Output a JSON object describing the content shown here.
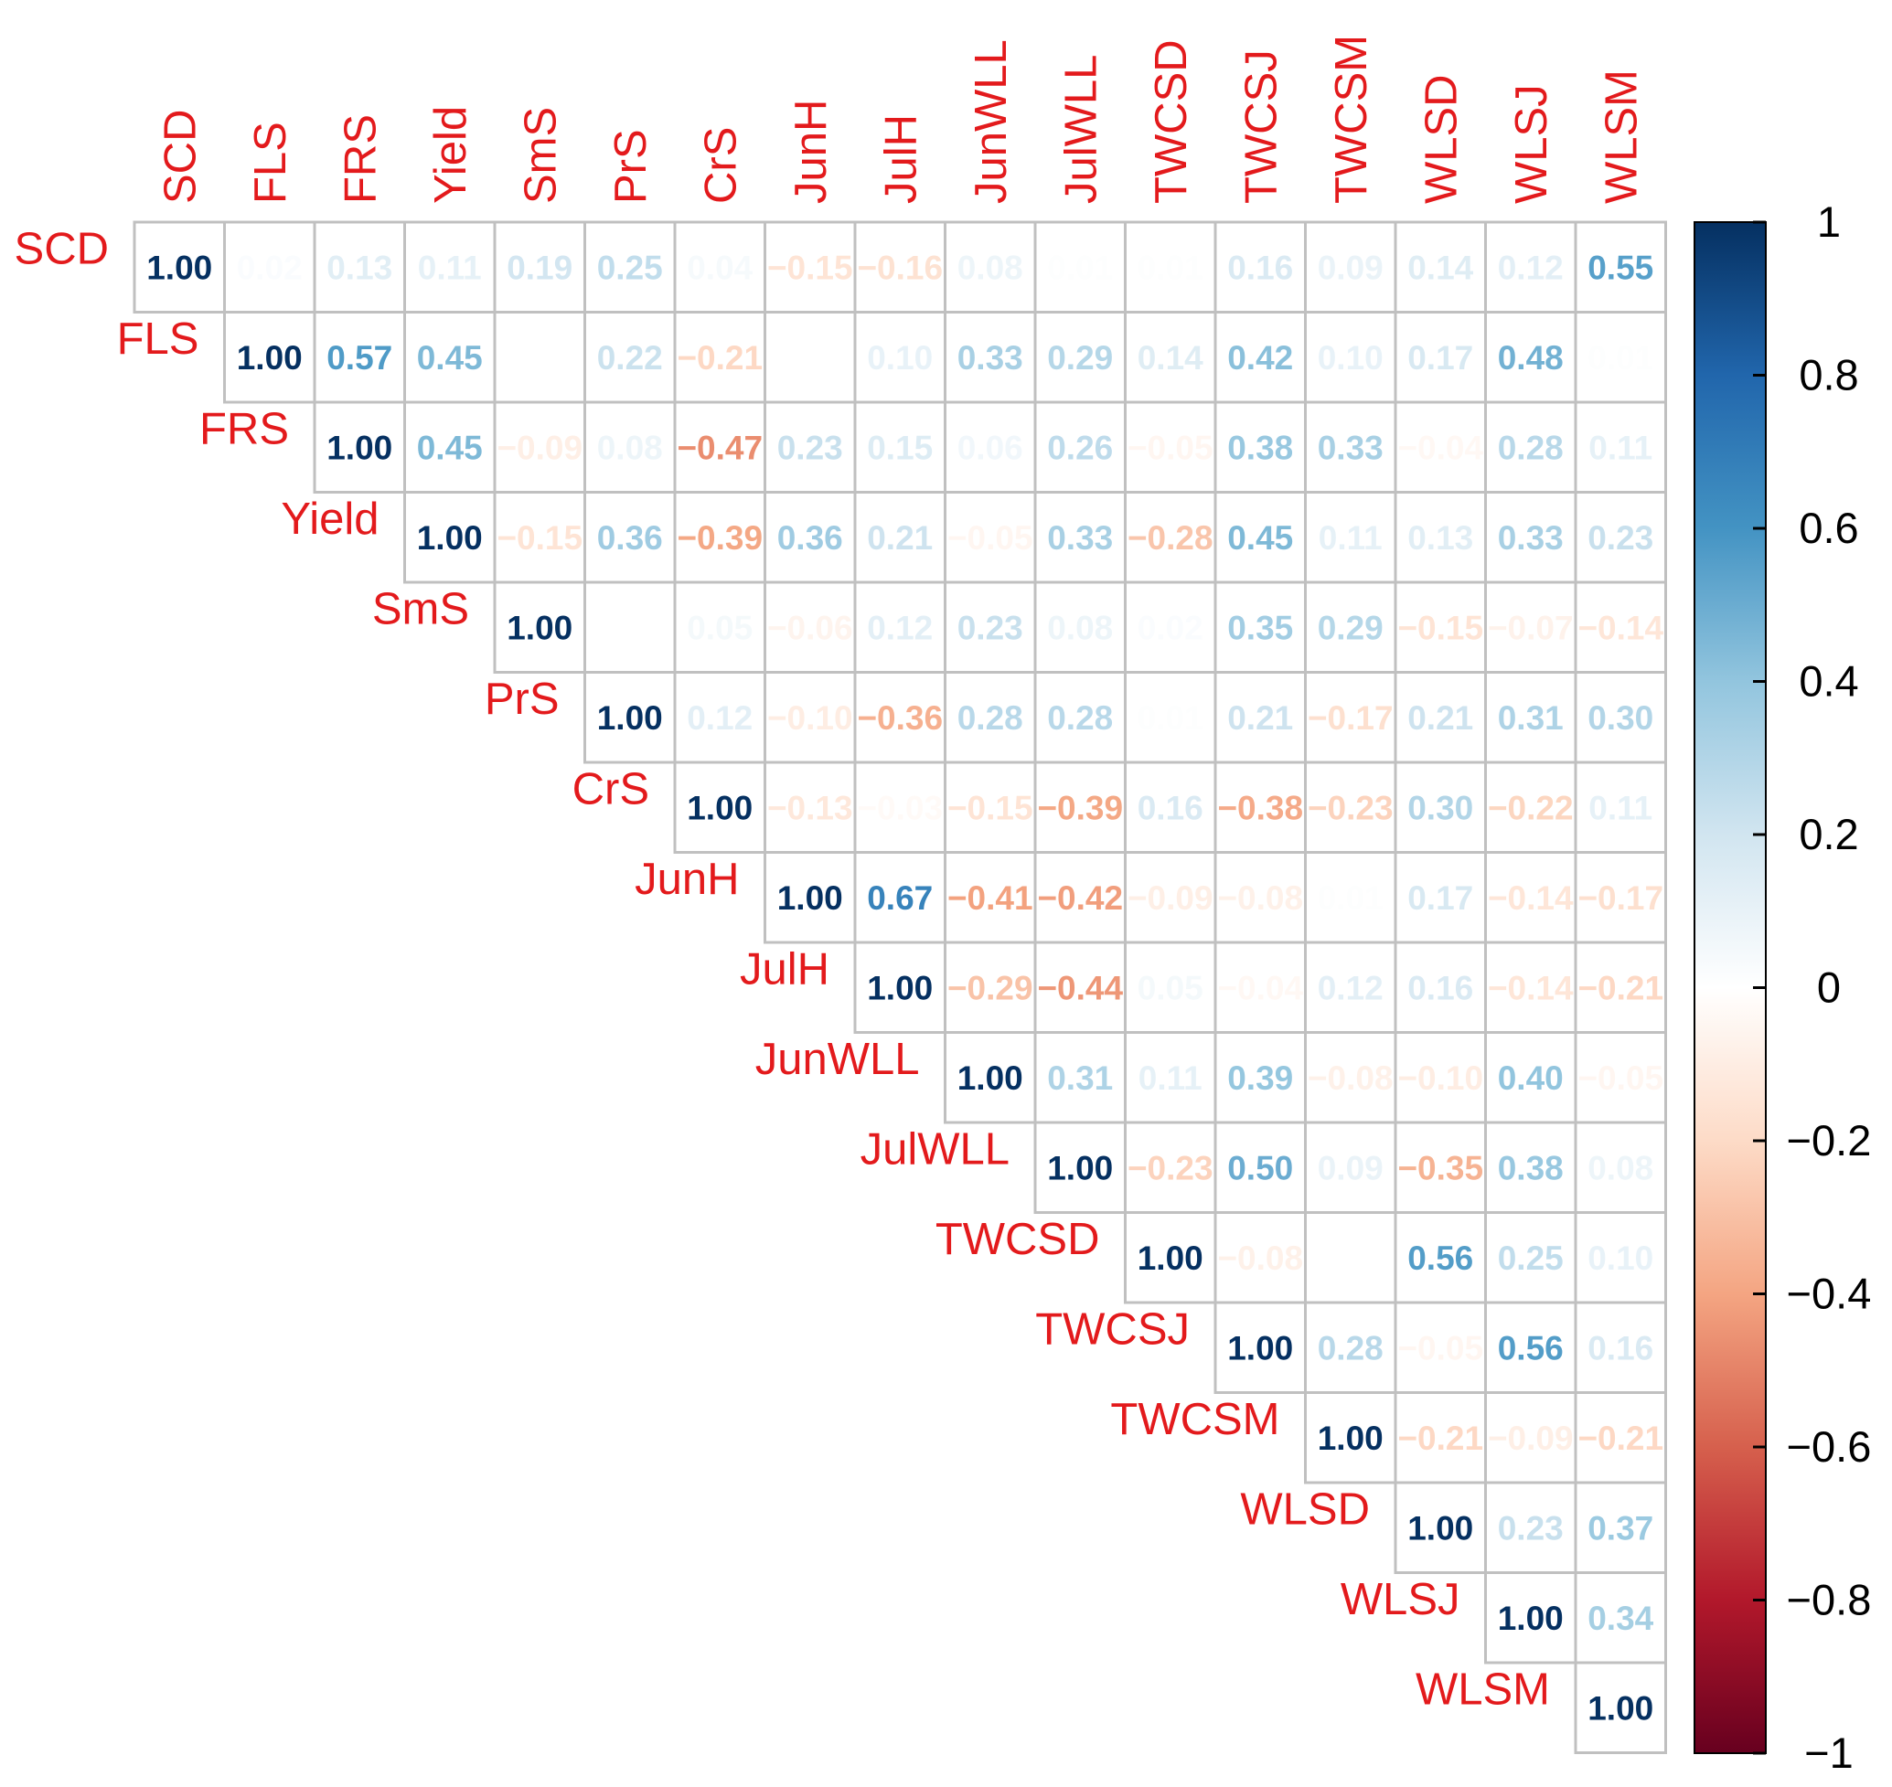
{
  "chart_data": {
    "type": "heatmap",
    "variables": [
      "SCD",
      "FLS",
      "FRS",
      "Yield",
      "SmS",
      "PrS",
      "CrS",
      "JunH",
      "JulH",
      "JunWLL",
      "JulWLL",
      "TWCSD",
      "TWCSJ",
      "TWCSM",
      "WLSD",
      "WLSJ",
      "WLSM"
    ],
    "upper_triangle_rows": [
      [
        "1.00",
        "0.02",
        "0.13",
        "0.11",
        "0.19",
        "0.25",
        "0.04",
        "-0.15",
        "-0.16",
        "0.08",
        "0.01",
        "0.01",
        "0.16",
        "0.09",
        "0.14",
        "0.12",
        "0.55"
      ],
      [
        "1.00",
        "0.57",
        "0.45",
        "-0.00",
        "0.22",
        "-0.21",
        "0.00",
        "0.10",
        "0.33",
        "0.29",
        "0.14",
        "0.42",
        "0.10",
        "0.17",
        "0.48",
        "0.01"
      ],
      [
        "1.00",
        "0.45",
        "-0.09",
        "0.08",
        "-0.47",
        "0.23",
        "0.15",
        "0.06",
        "0.26",
        "-0.05",
        "0.38",
        "0.33",
        "-0.04",
        "0.28",
        "0.11"
      ],
      [
        "1.00",
        "-0.15",
        "0.36",
        "-0.39",
        "0.36",
        "0.21",
        "-0.05",
        "0.33",
        "-0.28",
        "0.45",
        "0.11",
        "0.13",
        "0.33",
        "0.23"
      ],
      [
        "1.00",
        "-0.00",
        "0.05",
        "-0.06",
        "0.12",
        "0.23",
        "0.08",
        "0.02",
        "0.35",
        "0.29",
        "-0.15",
        "-0.07",
        "-0.14"
      ],
      [
        "1.00",
        "0.12",
        "-0.10",
        "-0.36",
        "0.28",
        "0.28",
        "0.01",
        "0.21",
        "-0.17",
        "0.21",
        "0.31",
        "0.30"
      ],
      [
        "1.00",
        "-0.13",
        "-0.03",
        "-0.15",
        "-0.39",
        "0.16",
        "-0.38",
        "-0.23",
        "0.30",
        "-0.22",
        "0.11"
      ],
      [
        "1.00",
        "0.67",
        "-0.41",
        "-0.42",
        "-0.09",
        "-0.08",
        "0.01",
        "0.17",
        "-0.14",
        "-0.17"
      ],
      [
        "1.00",
        "-0.29",
        "-0.44",
        "0.05",
        "-0.04",
        "0.12",
        "0.16",
        "-0.14",
        "-0.21"
      ],
      [
        "1.00",
        "0.31",
        "0.11",
        "0.39",
        "-0.08",
        "-0.10",
        "0.40",
        "-0.05"
      ],
      [
        "1.00",
        "-0.23",
        "0.50",
        "0.09",
        "-0.35",
        "0.38",
        "0.08"
      ],
      [
        "1.00",
        "-0.08",
        "0.00",
        "0.56",
        "0.25",
        "0.10"
      ],
      [
        "1.00",
        "0.28",
        "-0.05",
        "0.56",
        "0.16"
      ],
      [
        "1.00",
        "-0.21",
        "-0.09",
        "-0.21"
      ],
      [
        "1.00",
        "0.23",
        "0.37"
      ],
      [
        "1.00",
        "0.34"
      ],
      [
        "1.00"
      ]
    ],
    "colorbar": {
      "range": [
        -1,
        1
      ],
      "tick_labels": [
        "1",
        "0.8",
        "0.6",
        "0.4",
        "0.2",
        "0",
        "−0.2",
        "−0.4",
        "−0.6",
        "−0.8",
        "−1"
      ]
    },
    "colors": {
      "label": "#e31a1c",
      "grid": "#c0c0c0",
      "scale": [
        "#67001f",
        "#b2182b",
        "#d6604d",
        "#f4a582",
        "#fddbc7",
        "#ffffff",
        "#d1e5f0",
        "#92c5de",
        "#4393c3",
        "#2166ac",
        "#053061"
      ]
    }
  }
}
